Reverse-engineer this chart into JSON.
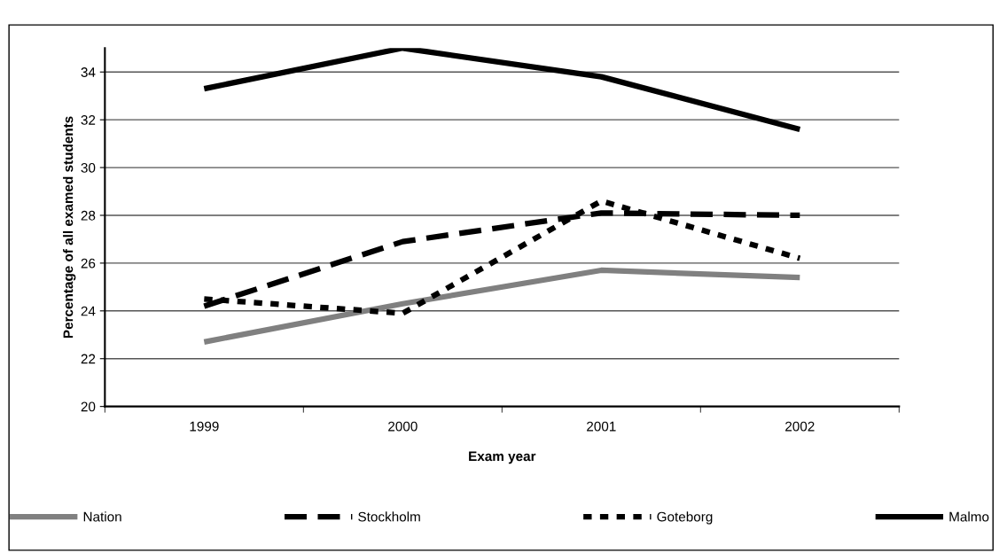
{
  "chart_data": {
    "type": "line",
    "xlabel": "Exam year",
    "ylabel": "Percentage of all examed students",
    "categories": [
      "1999",
      "2000",
      "2001",
      "2002"
    ],
    "series": [
      {
        "name": "Nation",
        "color": "#808080",
        "line_style": "solid",
        "values": [
          22.7,
          24.3,
          25.7,
          25.4
        ]
      },
      {
        "name": "Stockholm",
        "color": "#000000",
        "line_style": "dashed",
        "values": [
          24.2,
          26.9,
          28.1,
          28.0
        ]
      },
      {
        "name": "Goteborg",
        "color": "#000000",
        "line_style": "dotted",
        "values": [
          24.5,
          23.9,
          28.6,
          26.2
        ]
      },
      {
        "name": "Malmo",
        "color": "#000000",
        "line_style": "solid",
        "values": [
          33.3,
          35.0,
          33.8,
          31.6
        ]
      }
    ],
    "ylim": [
      20,
      35
    ],
    "yticks": [
      20,
      22,
      24,
      26,
      28,
      30,
      32,
      34
    ],
    "grid": "y",
    "legend": "bottom",
    "marker": "none"
  }
}
